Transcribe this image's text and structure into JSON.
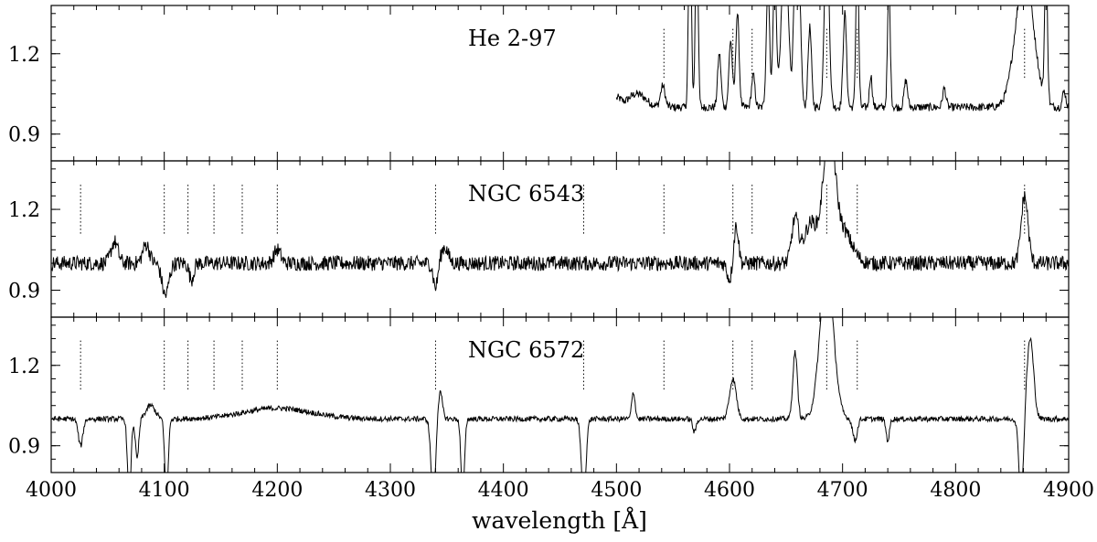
{
  "chart_data": {
    "type": "line",
    "xlabel": "wavelength [Å]",
    "xlim": [
      4000,
      4900
    ],
    "ylim": [
      0.8,
      1.38
    ],
    "x_ticks": [
      4000,
      4100,
      4200,
      4300,
      4400,
      4500,
      4600,
      4700,
      4800,
      4900
    ],
    "x_tick_labels": [
      "4000",
      "4100",
      "4200",
      "4300",
      "4400",
      "4500",
      "4600",
      "4700",
      "4800",
      "4900"
    ],
    "y_ticks": [
      0.9,
      1.2
    ],
    "y_tick_labels": [
      "0.9",
      "1.2"
    ],
    "panels": [
      {
        "label": "He 2-97",
        "marker_lines": [
          4542,
          4603,
          4620,
          4686,
          4713,
          4861
        ],
        "spectrum": {
          "start": 4500,
          "end": 4900,
          "baseline": 1.0,
          "noise": 0.015,
          "features": [
            {
              "center": 4501,
              "width": 3,
              "amp": 0.03
            },
            {
              "center": 4518,
              "width": 8,
              "amp": 0.05
            },
            {
              "center": 4541,
              "width": 2,
              "amp": 0.08
            },
            {
              "center": 4565,
              "width": 1.2,
              "amp": 0.8
            },
            {
              "center": 4571,
              "width": 1.2,
              "amp": 0.7
            },
            {
              "center": 4591,
              "width": 1.5,
              "amp": 0.2
            },
            {
              "center": 4601,
              "width": 1.5,
              "amp": 0.25
            },
            {
              "center": 4607,
              "width": 1.5,
              "amp": 0.35
            },
            {
              "center": 4621,
              "width": 1.5,
              "amp": 0.12
            },
            {
              "center": 4634,
              "width": 1.5,
              "amp": 0.45
            },
            {
              "center": 4640,
              "width": 1.5,
              "amp": 0.5
            },
            {
              "center": 4649,
              "width": 3,
              "amp": 0.6
            },
            {
              "center": 4658,
              "width": 1.5,
              "amp": 0.5
            },
            {
              "center": 4662,
              "width": 1.5,
              "amp": 0.4
            },
            {
              "center": 4671,
              "width": 1.5,
              "amp": 0.3
            },
            {
              "center": 4686,
              "width": 2,
              "amp": 0.7
            },
            {
              "center": 4702,
              "width": 1.5,
              "amp": 0.35
            },
            {
              "center": 4713,
              "width": 1.2,
              "amp": 0.6
            },
            {
              "center": 4725,
              "width": 1.2,
              "amp": 0.12
            },
            {
              "center": 4741,
              "width": 1.2,
              "amp": 0.45
            },
            {
              "center": 4756,
              "width": 1.5,
              "amp": 0.1
            },
            {
              "center": 4790,
              "width": 1.5,
              "amp": 0.07
            },
            {
              "center": 4861,
              "width": 8,
              "amp": 0.5
            },
            {
              "center": 4861,
              "width": 1.5,
              "amp": 0.5
            },
            {
              "center": 4880,
              "width": 1.2,
              "amp": 0.55
            },
            {
              "center": 4896,
              "width": 1.5,
              "amp": 0.06
            }
          ]
        }
      },
      {
        "label": "NGC 6543",
        "marker_lines": [
          4026,
          4100,
          4121,
          4144,
          4169,
          4200,
          4340,
          4471,
          4542,
          4603,
          4620,
          4686,
          4713,
          4861
        ],
        "spectrum": {
          "start": 4000,
          "end": 4900,
          "baseline": 1.0,
          "noise": 0.028,
          "features": [
            {
              "center": 4056,
              "width": 3,
              "amp": 0.08
            },
            {
              "center": 4084,
              "width": 3,
              "amp": 0.07
            },
            {
              "center": 4101,
              "width": 3,
              "amp": -0.12
            },
            {
              "center": 4124,
              "width": 2,
              "amp": -0.06
            },
            {
              "center": 4200,
              "width": 3,
              "amp": 0.05
            },
            {
              "center": 4340,
              "width": 2,
              "amp": -0.09
            },
            {
              "center": 4348,
              "width": 3,
              "amp": 0.06
            },
            {
              "center": 4600,
              "width": 2,
              "amp": -0.06
            },
            {
              "center": 4606,
              "width": 2,
              "amp": 0.14
            },
            {
              "center": 4658,
              "width": 3,
              "amp": 0.16
            },
            {
              "center": 4672,
              "width": 6,
              "amp": 0.15
            },
            {
              "center": 4688,
              "width": 5,
              "amp": 0.48
            },
            {
              "center": 4700,
              "width": 8,
              "amp": 0.12
            },
            {
              "center": 4861,
              "width": 3,
              "amp": 0.25
            }
          ]
        }
      },
      {
        "label": "NGC 6572",
        "marker_lines": [
          4026,
          4100,
          4121,
          4144,
          4169,
          4200,
          4340,
          4471,
          4542,
          4603,
          4620,
          4686,
          4713,
          4861
        ],
        "spectrum": {
          "start": 4000,
          "end": 4900,
          "baseline": 1.0,
          "noise": 0.01,
          "features": [
            {
              "center": 4026,
              "width": 2,
              "amp": -0.1
            },
            {
              "center": 4069,
              "width": 1.5,
              "amp": -0.3
            },
            {
              "center": 4076,
              "width": 1.5,
              "amp": -0.15
            },
            {
              "center": 4088,
              "width": 4,
              "amp": 0.05
            },
            {
              "center": 4102,
              "width": 1.5,
              "amp": -0.3
            },
            {
              "center": 4200,
              "width": 30,
              "amp": 0.04
            },
            {
              "center": 4338,
              "width": 2,
              "amp": -0.3
            },
            {
              "center": 4344,
              "width": 2,
              "amp": 0.1
            },
            {
              "center": 4364,
              "width": 1.5,
              "amp": -0.3
            },
            {
              "center": 4471,
              "width": 2,
              "amp": -0.3
            },
            {
              "center": 4515,
              "width": 1.5,
              "amp": 0.1
            },
            {
              "center": 4569,
              "width": 1.5,
              "amp": -0.05
            },
            {
              "center": 4603,
              "width": 3,
              "amp": 0.15
            },
            {
              "center": 4658,
              "width": 2,
              "amp": 0.25
            },
            {
              "center": 4686,
              "width": 6,
              "amp": 0.55
            },
            {
              "center": 4711,
              "width": 2,
              "amp": -0.08
            },
            {
              "center": 4740,
              "width": 1.5,
              "amp": -0.08
            },
            {
              "center": 4858,
              "width": 2,
              "amp": -0.3
            },
            {
              "center": 4866,
              "width": 3,
              "amp": 0.3
            }
          ]
        }
      }
    ]
  }
}
